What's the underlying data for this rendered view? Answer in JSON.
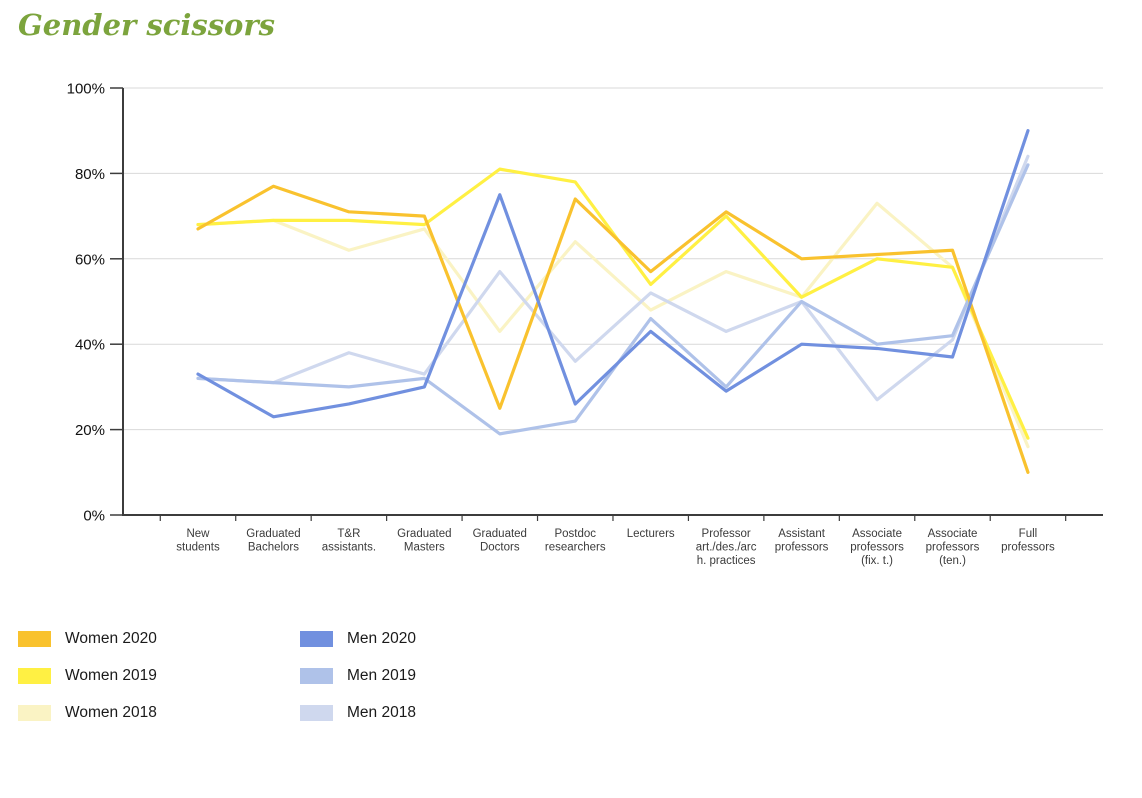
{
  "page": {
    "title": "Gender scissors",
    "title_color": "#7CA43D"
  },
  "chart_data": {
    "type": "line",
    "title": "Gender scissors",
    "xlabel": "",
    "ylabel": "",
    "ylim": [
      0,
      100
    ],
    "ytick_step": 20,
    "ytick_suffix": "%",
    "grid": true,
    "legend_position": "bottom-left",
    "categories": [
      "New students",
      "Graduated Bachelors",
      "T&R assistants.",
      "Graduated Masters",
      "Graduated Doctors",
      "Postdoc researchers",
      "Lecturers",
      "Professor art./des./arch. practices",
      "Assistant professors",
      "Associate professors (fix. t.)",
      "Associate professors (ten.)",
      "Full professors"
    ],
    "category_label_lines": [
      [
        "New",
        "students"
      ],
      [
        "Graduated",
        "Bachelors"
      ],
      [
        "T&R",
        "assistants."
      ],
      [
        "Graduated",
        "Masters"
      ],
      [
        "Graduated",
        "Doctors"
      ],
      [
        "Postdoc",
        "researchers"
      ],
      [
        "Lecturers"
      ],
      [
        "Professor",
        "art./des./arc",
        "h. practices"
      ],
      [
        "Assistant",
        "professors"
      ],
      [
        "Associate",
        "professors",
        "(fix. t.)"
      ],
      [
        "Associate",
        "professors",
        "(ten.)"
      ],
      [
        "Full",
        "professors"
      ]
    ],
    "series": [
      {
        "name": "Women 2020",
        "color": "#F9C22E",
        "values": [
          67,
          77,
          71,
          70,
          25,
          74,
          57,
          71,
          60,
          61,
          62,
          10
        ]
      },
      {
        "name": "Women 2019",
        "color": "#FFF043",
        "values": [
          68,
          69,
          69,
          68,
          81,
          78,
          54,
          70,
          51,
          60,
          58,
          18
        ]
      },
      {
        "name": "Women 2018",
        "color": "#FAF3C4",
        "values": [
          68,
          69,
          62,
          67,
          43,
          64,
          48,
          57,
          51,
          73,
          58,
          16
        ]
      },
      {
        "name": "Men 2020",
        "color": "#7190DF",
        "values": [
          33,
          23,
          26,
          30,
          75,
          26,
          43,
          29,
          40,
          39,
          37,
          90
        ]
      },
      {
        "name": "Men 2019",
        "color": "#AFC2E9",
        "values": [
          32,
          31,
          30,
          32,
          19,
          22,
          46,
          30,
          50,
          40,
          42,
          82
        ]
      },
      {
        "name": "Men 2018",
        "color": "#CFD8EE",
        "values": [
          32,
          31,
          38,
          33,
          57,
          36,
          52,
          43,
          50,
          27,
          41,
          84
        ]
      }
    ],
    "legend_columns": [
      [
        "Women 2020",
        "Women 2019",
        "Women 2018"
      ],
      [
        "Men 2020",
        "Men 2019",
        "Men 2018"
      ]
    ]
  }
}
